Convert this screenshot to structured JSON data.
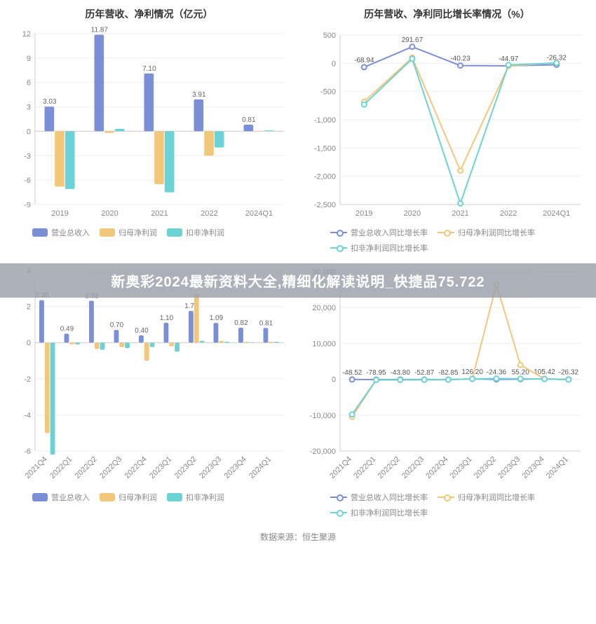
{
  "colors": {
    "series1": "#7b8fd6",
    "series2": "#f3c77a",
    "series3": "#6dd2d6",
    "axis": "#cccccc",
    "grid": "#eeeeee",
    "tick_text": "#888888",
    "bg": "#ffffff",
    "overlay_bg": "#9aa1aa",
    "overlay_text": "#ffffff",
    "footer_text": "#888888"
  },
  "overlay_text": "新奥彩2024最新资料大全,精细化解读说明_快捷品75.722",
  "footer": "数据来源：恒生聚源",
  "chart_tl": {
    "type": "bar",
    "title": "历年营收、净利情况（亿元）",
    "title_fontsize": 14,
    "categories": [
      "2019",
      "2020",
      "2021",
      "2022",
      "2024Q1"
    ],
    "ylim": [
      -9,
      12
    ],
    "ytick_step": 3,
    "series": [
      {
        "name": "营业总收入",
        "color": "#7b8fd6",
        "values": [
          3.03,
          11.87,
          7.1,
          3.91,
          0.81
        ],
        "labels": [
          "3.03",
          "11.87",
          "7.10",
          "3.91",
          "0.81"
        ]
      },
      {
        "name": "归母净利润",
        "color": "#f3c77a",
        "values": [
          -6.8,
          -0.2,
          -6.5,
          -3.0,
          0.05
        ],
        "labels": [
          "",
          "",
          "",
          "",
          ""
        ]
      },
      {
        "name": "扣非净利润",
        "color": "#6dd2d6",
        "values": [
          -7.1,
          0.3,
          -7.5,
          -2.0,
          0.1
        ],
        "labels": [
          "",
          "",
          "",
          "",
          ""
        ]
      }
    ],
    "bar_group_width": 0.62,
    "label_fontsize": 10
  },
  "chart_tr": {
    "type": "line",
    "title": "历年营收、净利同比增长率情况（%）",
    "title_fontsize": 14,
    "categories": [
      "2019",
      "2020",
      "2021",
      "2022",
      "2024Q1"
    ],
    "ylim": [
      -2500,
      500
    ],
    "ytick_step": 500,
    "series": [
      {
        "name": "营业总收入同比增长率",
        "color": "#7b8fd6",
        "values": [
          -68.94,
          291.67,
          -40.23,
          -44.97,
          -26.32
        ],
        "labels": [
          "-68.94",
          "291.67",
          "-40.23",
          "-44.97",
          "-26.32"
        ]
      },
      {
        "name": "归母净利润同比增长率",
        "color": "#f3c77a",
        "values": [
          -680,
          100,
          -1900,
          -50,
          10
        ],
        "labels": [
          "",
          "",
          "",
          "",
          ""
        ]
      },
      {
        "name": "扣非净利润同比增长率",
        "color": "#6dd2d6",
        "values": [
          -730,
          80,
          -2480,
          -30,
          5
        ],
        "labels": [
          "",
          "",
          "",
          "",
          ""
        ]
      }
    ],
    "marker_radius": 3.5,
    "line_width": 2,
    "label_fontsize": 10
  },
  "chart_bl": {
    "type": "bar",
    "title": "",
    "categories": [
      "2021Q4",
      "2022Q1",
      "2022Q2",
      "2022Q3",
      "2022Q4",
      "2023Q1",
      "2023Q2",
      "2023Q3",
      "2023Q4",
      "2024Q1"
    ],
    "xlabel_rotate": -45,
    "ylim": [
      -6,
      4
    ],
    "ytick_step": 2,
    "series": [
      {
        "name": "营业总收入",
        "color": "#7b8fd6",
        "values": [
          2.35,
          0.49,
          2.32,
          0.7,
          0.4,
          1.1,
          1.75,
          1.09,
          0.82,
          0.81
        ],
        "labels": [
          "2.35",
          "0.49",
          "2.32",
          "0.70",
          "0.40",
          "1.10",
          "1.75",
          "1.09",
          "0.82",
          "0.81"
        ]
      },
      {
        "name": "归母净利润",
        "color": "#f3c77a",
        "values": [
          -5.0,
          -0.1,
          -0.35,
          -0.25,
          -1.0,
          -0.2,
          2.7,
          0.1,
          0.05,
          0.05
        ],
        "labels": [
          "",
          "",
          "",
          "",
          "",
          "",
          "",
          "",
          "",
          ""
        ]
      },
      {
        "name": "扣非净利润",
        "color": "#6dd2d6",
        "values": [
          -6.2,
          -0.1,
          -0.4,
          -0.3,
          -0.25,
          -0.5,
          0.1,
          0.05,
          0.02,
          0.05
        ],
        "labels": [
          "",
          "",
          "",
          "",
          "",
          "",
          "",
          "",
          "",
          ""
        ]
      }
    ],
    "bar_group_width": 0.66,
    "label_fontsize": 10
  },
  "chart_br": {
    "type": "line",
    "title": "",
    "categories": [
      "2021Q4",
      "2022Q1",
      "2022Q2",
      "2022Q3",
      "2022Q4",
      "2023Q1",
      "2023Q2",
      "2023Q3",
      "2023Q4",
      "2024Q1"
    ],
    "xlabel_rotate": -45,
    "ylim": [
      -20000,
      30000
    ],
    "ytick_step": 10000,
    "series": [
      {
        "name": "营业总收入同比增长率",
        "color": "#7b8fd6",
        "values": [
          -48.52,
          -78.95,
          -43.8,
          -52.87,
          -82.85,
          126.2,
          -24.36,
          55.2,
          105.42,
          -26.32
        ],
        "labels": [
          "-48.52",
          "-78.95",
          "-43.80",
          "-52.87",
          "-82.85",
          "126.20",
          "-24.36",
          "55.20",
          "105.42",
          "-26.32"
        ]
      },
      {
        "name": "归母净利润同比增长率",
        "color": "#f3c77a",
        "values": [
          -10500,
          -200,
          -180,
          -150,
          -120,
          150,
          26500,
          4000,
          120,
          -100
        ],
        "labels": [
          "",
          "",
          "",
          "",
          "",
          "",
          "",
          "",
          "",
          ""
        ]
      },
      {
        "name": "扣非净利润同比增长率",
        "color": "#6dd2d6",
        "values": [
          -9800,
          -180,
          -150,
          -120,
          -100,
          120,
          200,
          160,
          90,
          -80
        ],
        "labels": [
          "",
          "",
          "",
          "",
          "",
          "",
          "",
          "",
          "",
          ""
        ]
      }
    ],
    "marker_radius": 3.5,
    "line_width": 2,
    "label_fontsize": 10
  },
  "legend_bar": [
    "营业总收入",
    "归母净利润",
    "扣非净利润"
  ],
  "legend_line": [
    "营业总收入同比增长率",
    "归母净利润同比增长率",
    "扣非净利润同比增长率"
  ]
}
